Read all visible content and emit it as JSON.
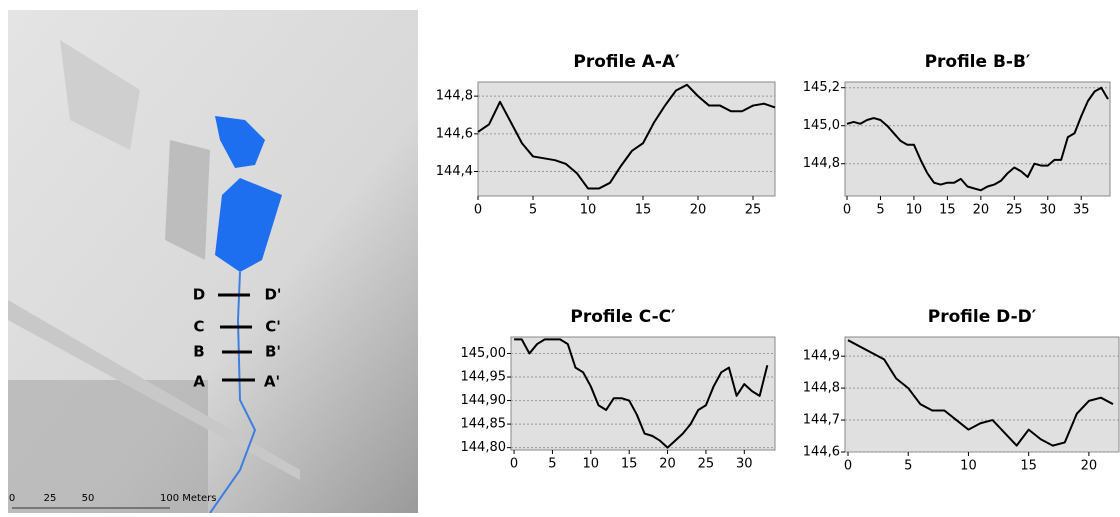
{
  "map": {
    "labels": [
      "D",
      "D'",
      "C",
      "C'",
      "B",
      "B'",
      "A",
      "A'"
    ],
    "scale": [
      "0",
      "25",
      "50",
      "100 Meters"
    ]
  },
  "chart_data": [
    {
      "type": "line",
      "title": "Profile A-A′",
      "color": "#000000",
      "x": [
        0,
        1,
        2,
        3,
        4,
        5,
        6,
        7,
        8,
        9,
        10,
        11,
        12,
        13,
        14,
        15,
        16,
        17,
        18,
        19,
        20,
        21,
        22,
        23,
        24,
        25,
        26,
        27
      ],
      "values": [
        144.61,
        144.65,
        144.77,
        144.66,
        144.55,
        144.48,
        144.47,
        144.46,
        144.44,
        144.39,
        144.31,
        144.31,
        144.34,
        144.43,
        144.51,
        144.55,
        144.66,
        144.75,
        144.83,
        144.86,
        144.8,
        144.75,
        144.75,
        144.72,
        144.72,
        144.75,
        144.76,
        144.74
      ],
      "xlim": [
        0,
        27
      ],
      "xticks": [
        0,
        5,
        10,
        15,
        20,
        25
      ],
      "ylim": [
        144.27,
        144.875
      ],
      "yticks": [
        {
          "value": 144.4,
          "label": "144,4"
        },
        {
          "value": 144.6,
          "label": "144,6"
        },
        {
          "value": 144.8,
          "label": "144,8"
        }
      ],
      "grid": true
    },
    {
      "type": "line",
      "title": "Profile B-B′",
      "color": "#000000",
      "x": [
        0,
        1,
        2,
        3,
        4,
        5,
        6,
        7,
        8,
        9,
        10,
        11,
        12,
        13,
        14,
        15,
        16,
        17,
        18,
        19,
        20,
        21,
        22,
        23,
        24,
        25,
        26,
        27,
        28,
        29,
        30,
        31,
        32,
        33,
        34,
        35,
        36,
        37,
        38,
        39
      ],
      "values": [
        145.01,
        145.02,
        145.01,
        145.03,
        145.04,
        145.03,
        145.0,
        144.96,
        144.92,
        144.9,
        144.9,
        144.82,
        144.75,
        144.7,
        144.69,
        144.7,
        144.7,
        144.72,
        144.68,
        144.67,
        144.66,
        144.68,
        144.69,
        144.71,
        144.75,
        144.78,
        144.76,
        144.73,
        144.8,
        144.79,
        144.79,
        144.82,
        144.82,
        144.94,
        144.96,
        145.05,
        145.13,
        145.18,
        145.2,
        145.14
      ],
      "xlim": [
        -0.3,
        39.3
      ],
      "xticks": [
        0,
        5,
        10,
        15,
        20,
        25,
        30,
        35
      ],
      "ylim": [
        144.63,
        145.23
      ],
      "yticks": [
        {
          "value": 144.8,
          "label": "144,8"
        },
        {
          "value": 145.0,
          "label": "145,0"
        },
        {
          "value": 145.2,
          "label": "145,2"
        }
      ],
      "grid": true
    },
    {
      "type": "line",
      "title": "Profile C-C′",
      "color": "#000000",
      "x": [
        0,
        1,
        2,
        3,
        4,
        5,
        6,
        7,
        8,
        9,
        10,
        11,
        12,
        13,
        14,
        15,
        16,
        17,
        18,
        19,
        20,
        21,
        22,
        23,
        24,
        25,
        26,
        27,
        28,
        29,
        30,
        31,
        32,
        33
      ],
      "values": [
        145.03,
        145.03,
        145.0,
        145.02,
        145.03,
        145.03,
        145.03,
        145.02,
        144.97,
        144.96,
        144.93,
        144.89,
        144.88,
        144.905,
        144.905,
        144.9,
        144.87,
        144.83,
        144.825,
        144.815,
        144.8,
        144.815,
        144.83,
        144.85,
        144.88,
        144.89,
        144.93,
        144.96,
        144.97,
        144.91,
        144.935,
        144.92,
        144.91,
        144.975
      ],
      "xlim": [
        -0.4,
        34
      ],
      "xticks": [
        0,
        5,
        10,
        15,
        20,
        25,
        30
      ],
      "ylim": [
        144.795,
        145.035
      ],
      "yticks": [
        {
          "value": 144.8,
          "label": "144,80"
        },
        {
          "value": 144.85,
          "label": "144,85"
        },
        {
          "value": 144.9,
          "label": "144,90"
        },
        {
          "value": 144.95,
          "label": "144,95"
        },
        {
          "value": 145.0,
          "label": "145,00"
        }
      ],
      "grid": true
    },
    {
      "type": "line",
      "title": "Profile D-D′",
      "color": "#000000",
      "x": [
        0,
        1,
        2,
        3,
        4,
        5,
        6,
        7,
        8,
        9,
        10,
        11,
        12,
        13,
        14,
        15,
        16,
        17,
        18,
        19,
        20,
        21,
        22
      ],
      "values": [
        144.95,
        144.93,
        144.91,
        144.89,
        144.83,
        144.8,
        144.75,
        144.73,
        144.73,
        144.7,
        144.67,
        144.69,
        144.7,
        144.66,
        144.62,
        144.67,
        144.64,
        144.62,
        144.63,
        144.72,
        144.76,
        144.77,
        144.75
      ],
      "xlim": [
        -0.25,
        22.5
      ],
      "xticks": [
        0,
        5,
        10,
        15,
        20
      ],
      "ylim": [
        144.6,
        144.96
      ],
      "yticks": [
        {
          "value": 144.6,
          "label": "144,6"
        },
        {
          "value": 144.7,
          "label": "144,7"
        },
        {
          "value": 144.8,
          "label": "144,8"
        },
        {
          "value": 144.9,
          "label": "144,9"
        }
      ],
      "grid": true
    }
  ]
}
